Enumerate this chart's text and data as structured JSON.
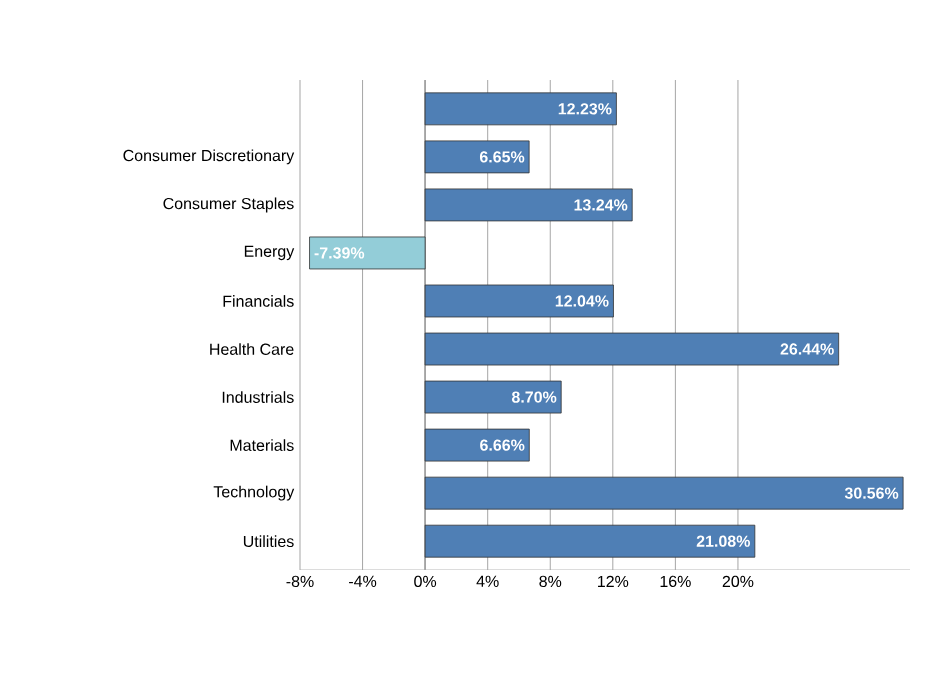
{
  "chart_data": {
    "type": "bar",
    "orientation": "horizontal",
    "categories": [
      null,
      "Consumer Discretionary",
      "Consumer Staples",
      "Energy",
      "Financials",
      "Health Care",
      "Industrials",
      "Materials",
      "Technology",
      "Utilities"
    ],
    "values": [
      12.23,
      6.65,
      13.24,
      -7.39,
      12.04,
      26.44,
      8.7,
      6.66,
      30.56,
      21.08
    ],
    "value_labels": [
      "12.23%",
      "6.65%",
      "13.24%",
      "-7.39%",
      "12.04%",
      "26.44%",
      "8.70%",
      "6.66%",
      "30.56%",
      "21.08%"
    ],
    "colors": [
      "#4f7fb5",
      "#4f7fb5",
      "#4f7fb5",
      "#93cdd8",
      "#4f7fb5",
      "#4f7fb5",
      "#4f7fb5",
      "#4f7fb5",
      "#4f7fb5",
      "#4f7fb5"
    ],
    "xlim": [
      -8,
      31
    ],
    "xticks": [
      {
        "value": -8,
        "label": "-8%"
      },
      {
        "value": -4,
        "label": "-4%"
      },
      {
        "value": 0,
        "label": "0%"
      },
      {
        "value": 4,
        "label": "4%"
      },
      {
        "value": 8,
        "label": "8%"
      },
      {
        "value": 12,
        "label": "12%"
      },
      {
        "value": 16,
        "label": "16%"
      },
      {
        "value": 20,
        "label": "20%"
      }
    ],
    "grid": "x"
  }
}
